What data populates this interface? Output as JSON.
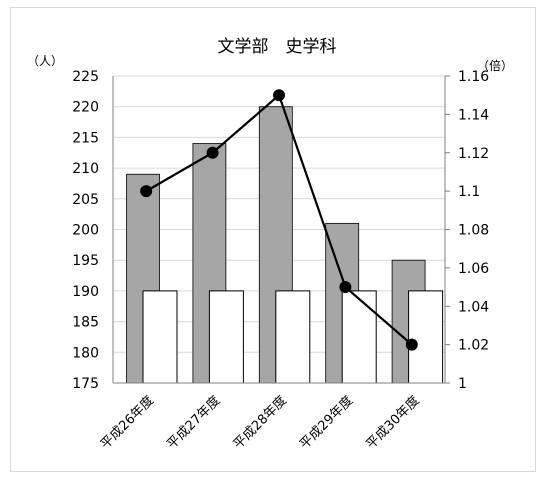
{
  "chart_data": {
    "type": "bar",
    "title": "文学部　史学科",
    "categories": [
      "平成26年度",
      "平成27年度",
      "平成28年度",
      "平成29年度",
      "平成30年度"
    ],
    "series": [
      {
        "kind": "bar",
        "axis": "left",
        "color": "#a6a6a6",
        "values": [
          209,
          214,
          220,
          201,
          195
        ]
      },
      {
        "kind": "bar",
        "axis": "left",
        "color": "#ffffff",
        "values": [
          190,
          190,
          190,
          190,
          190
        ]
      },
      {
        "kind": "line",
        "axis": "right",
        "color": "#000000",
        "values": [
          1.1,
          1.12,
          1.15,
          1.05,
          1.02
        ]
      }
    ],
    "y_left": {
      "unit": "（人）",
      "min": 175,
      "max": 225,
      "ticks": [
        "175",
        "180",
        "185",
        "190",
        "195",
        "200",
        "205",
        "210",
        "215",
        "220",
        "225"
      ]
    },
    "y_right": {
      "unit": "（倍）",
      "min": 1.0,
      "max": 1.16,
      "ticks": [
        "1",
        "1.02",
        "1.04",
        "1.06",
        "1.08",
        "1.1",
        "1.12",
        "1.14",
        "1.16"
      ]
    },
    "grid": true,
    "legend": "none"
  }
}
